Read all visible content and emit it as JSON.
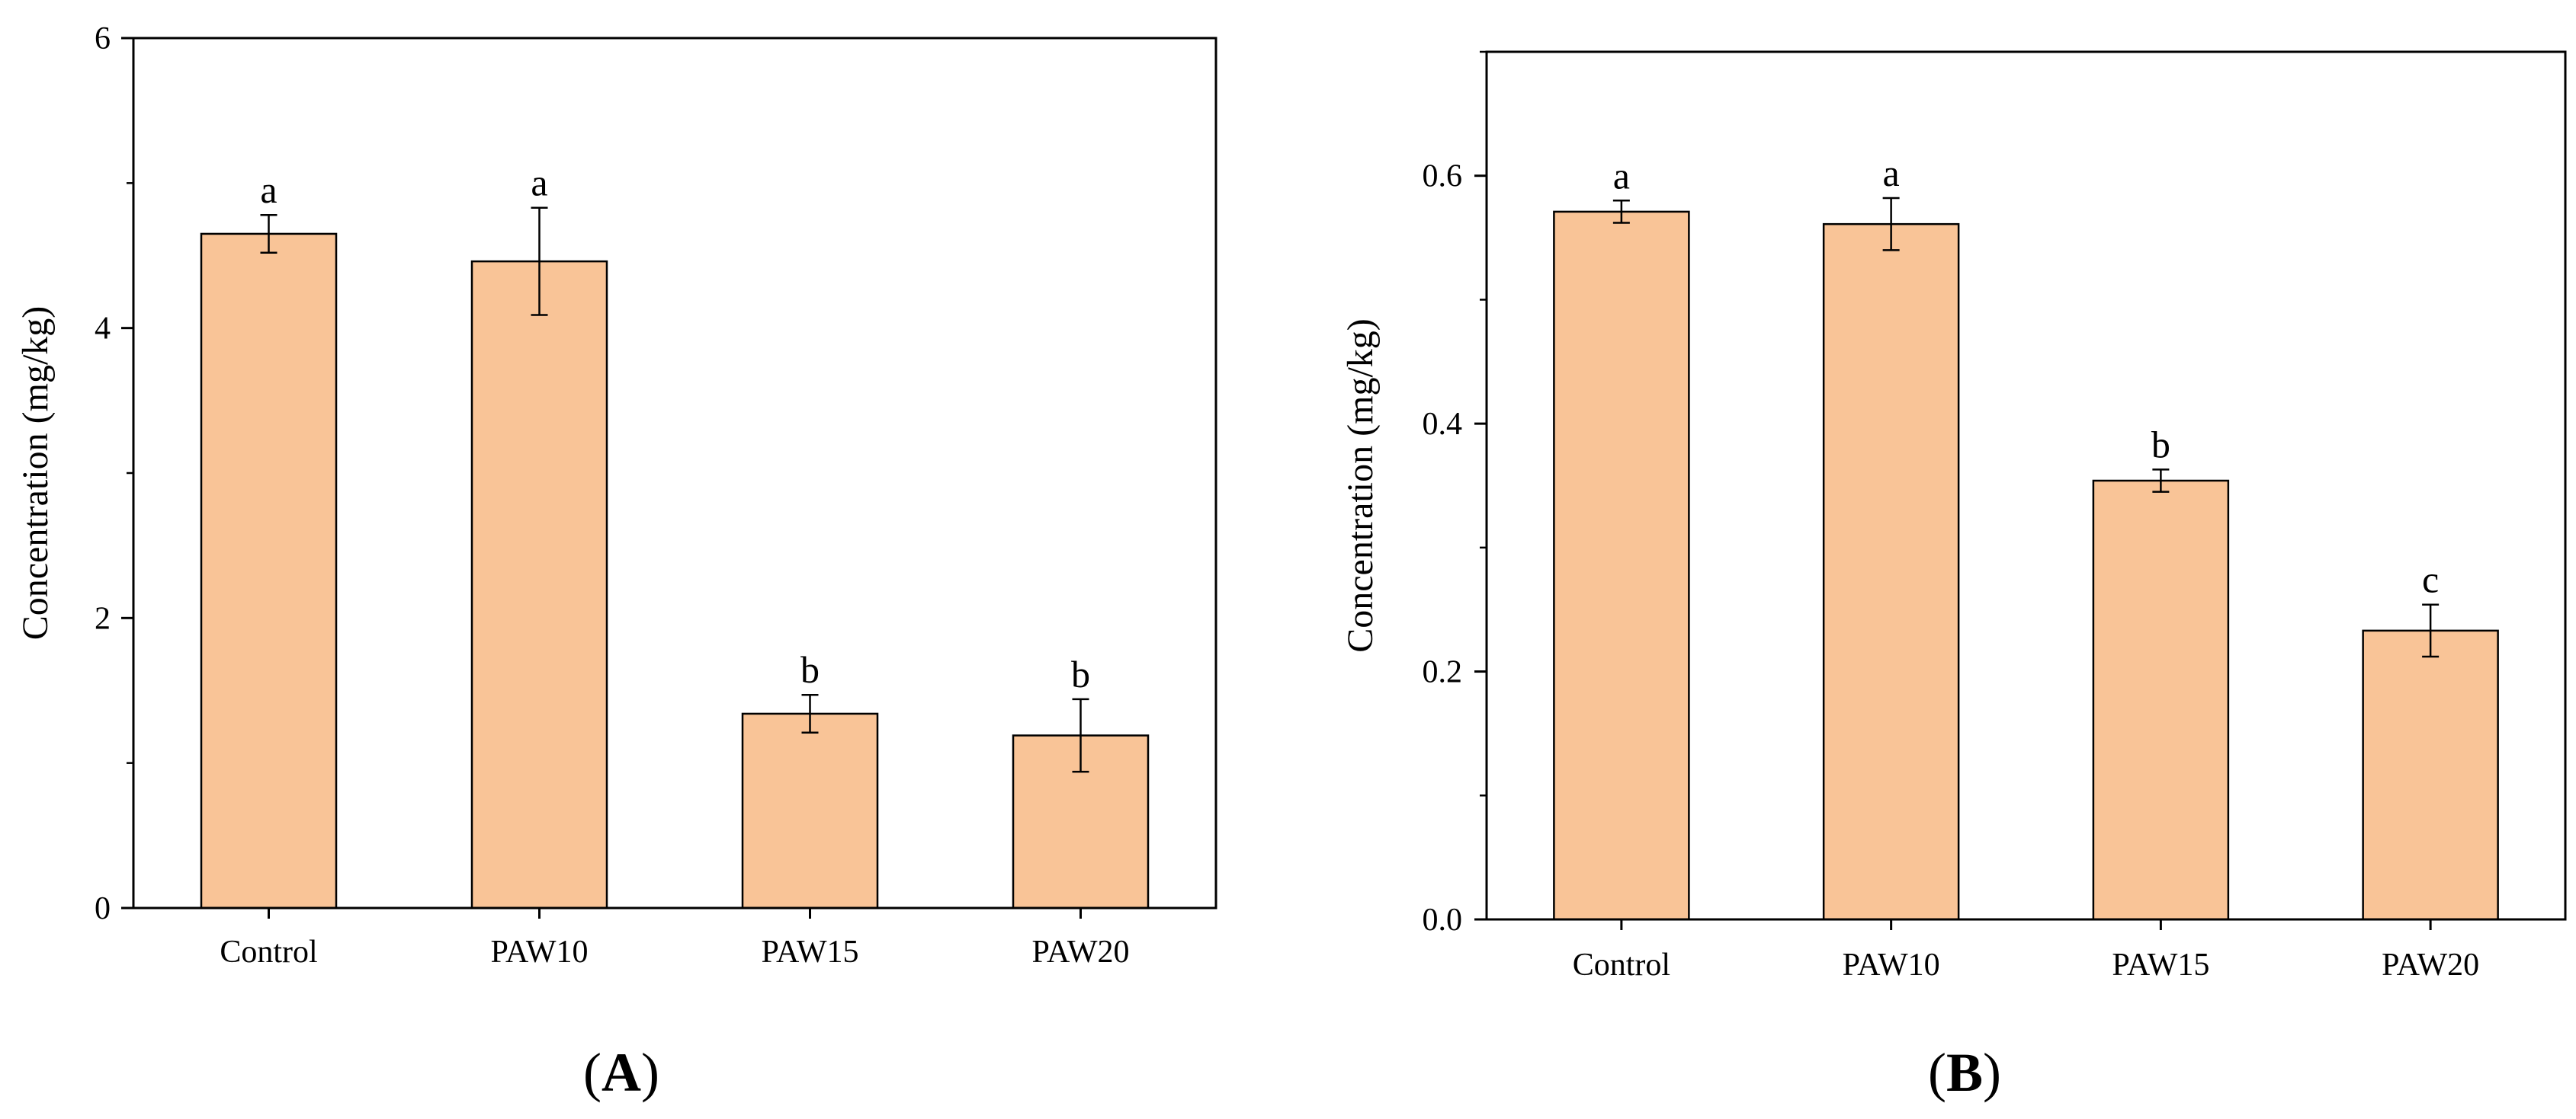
{
  "chart_data": [
    {
      "type": "bar",
      "panel_label": "A",
      "title": "",
      "xlabel": "",
      "ylabel": "Concentration (mg/kg)",
      "categories": [
        "Control",
        "PAW10",
        "PAW15",
        "PAW20"
      ],
      "values": [
        4.65,
        4.46,
        1.34,
        1.19
      ],
      "errors": [
        0.13,
        0.37,
        0.13,
        0.25
      ],
      "significance": [
        "a",
        "a",
        "b",
        "b"
      ],
      "ylim": [
        0,
        6
      ],
      "yticks": [
        0,
        2,
        4,
        6
      ],
      "ytick_labels": [
        "0",
        "2",
        "4",
        "6"
      ],
      "bar_color": "#f9c497",
      "grid": false
    },
    {
      "type": "bar",
      "panel_label": "B",
      "title": "",
      "xlabel": "",
      "ylabel": "Concentration (mg/kg)",
      "categories": [
        "Control",
        "PAW10",
        "PAW15",
        "PAW20"
      ],
      "values": [
        0.571,
        0.561,
        0.354,
        0.233
      ],
      "errors": [
        0.009,
        0.021,
        0.009,
        0.021
      ],
      "significance": [
        "a",
        "a",
        "b",
        "c"
      ],
      "ylim": [
        0,
        0.7
      ],
      "yticks": [
        0,
        0.2,
        0.4,
        0.6
      ],
      "ytick_labels": [
        "0.0",
        "0.2",
        "0.4",
        "0.6"
      ],
      "bar_color": "#f9c497",
      "grid": false
    }
  ]
}
